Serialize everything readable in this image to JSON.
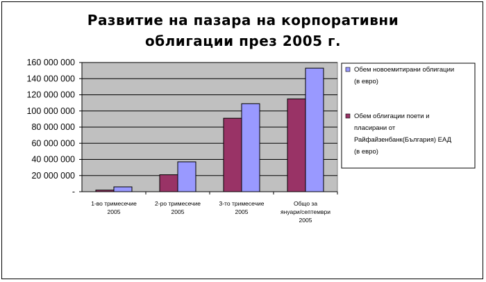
{
  "chart_data": {
    "type": "bar",
    "title_lines": [
      "Развитие на пазара на корпоративни",
      "облигации през 2005 г."
    ],
    "categories": [
      [
        "1-во тримесечие",
        "2005"
      ],
      [
        "2-ро тримесечие",
        "2005"
      ],
      [
        "3-то тримесечие",
        "2005"
      ],
      [
        "Общо за",
        "януари/септември",
        "2005"
      ]
    ],
    "series": [
      {
        "name_lines": [
          "Обем облигации поети и",
          "пласирани от",
          "Райфайзенбанк(България) ЕАД",
          "(в евро)"
        ],
        "color": "#993366",
        "values": [
          2000000,
          21000000,
          91000000,
          115000000
        ]
      },
      {
        "name_lines": [
          "Обем новоемитирани облигации",
          "(в евро)"
        ],
        "color": "#9999ff",
        "values": [
          6000000,
          37000000,
          109000000,
          153000000
        ]
      }
    ],
    "y_ticks": [
      "-",
      "20 000 000",
      "40 000 000",
      "60 000 000",
      "80 000 000",
      "100 000 000",
      "120 000 000",
      "140 000 000",
      "160 000 000"
    ],
    "ylim": [
      0,
      160000000
    ],
    "plot_background": "#c0c0c0",
    "grid": true,
    "legend_position": "right"
  }
}
